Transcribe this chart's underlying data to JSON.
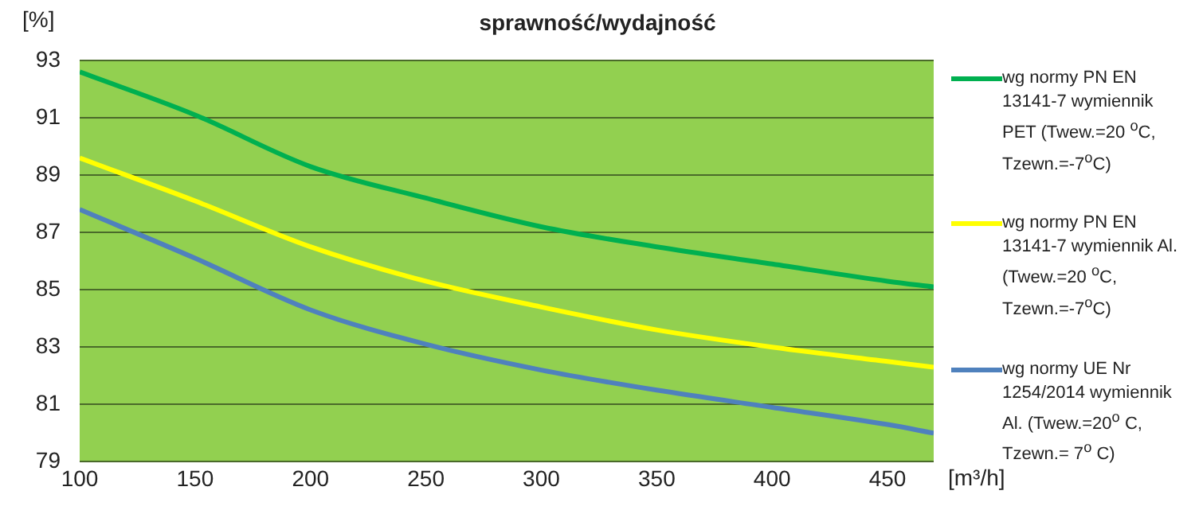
{
  "chart_data": {
    "type": "line",
    "title": "sprawność/wydajność",
    "xlabel": "[m³/h]",
    "ylabel": "[%]",
    "x": [
      100,
      150,
      200,
      250,
      300,
      350,
      400,
      450,
      470
    ],
    "series": [
      {
        "name": "wg normy PN EN 13141-7 wymiennik PET (Twew.=20 $^{o}$C, Tzewn.=-7$^{o}$C)",
        "color": "#00b050",
        "values": [
          92.6,
          91.1,
          89.3,
          88.2,
          87.2,
          86.5,
          85.9,
          85.3,
          85.1
        ]
      },
      {
        "name": "wg normy PN EN 13141-7 wymiennik Al. (Twew.=20 $^{o}$C, Tzewn.=-7$^{o}$C)",
        "color": "#ffff00",
        "values": [
          89.6,
          88.1,
          86.5,
          85.3,
          84.4,
          83.6,
          83.0,
          82.5,
          82.3
        ]
      },
      {
        "name": "wg normy UE Nr 1254/2014 wymiennik Al. (Twew.=20$^{o}$ C, Tzewn.= 7$^{o}$ C)",
        "color": "#4f81bd",
        "values": [
          87.8,
          86.1,
          84.3,
          83.1,
          82.2,
          81.5,
          80.9,
          80.3,
          80.0
        ]
      }
    ],
    "xlim": [
      100,
      470
    ],
    "xticks": [
      100,
      150,
      200,
      250,
      300,
      350,
      400,
      450
    ],
    "ylim": [
      79,
      93
    ],
    "yticks": [
      79,
      81,
      83,
      85,
      87,
      89,
      91,
      93
    ],
    "grid": "y",
    "legend": "right",
    "marker": "none",
    "line_style": "solid"
  }
}
